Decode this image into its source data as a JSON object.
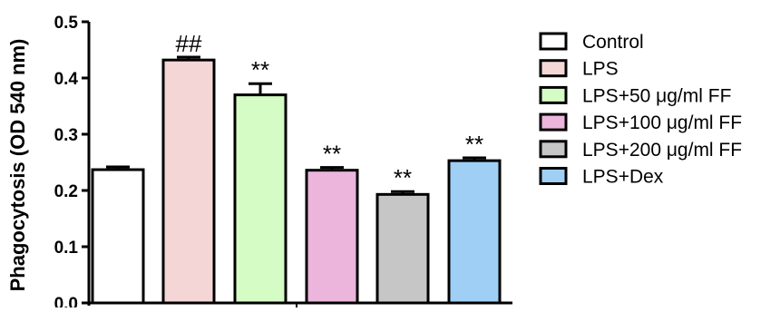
{
  "chart_data": {
    "type": "bar",
    "title": "",
    "xlabel": "",
    "ylabel": "Phagocytosis (OD 540 nm)",
    "ylim": [
      0,
      0.5
    ],
    "yticks": [
      "0.0",
      "0.1",
      "0.2",
      "0.3",
      "0.4",
      "0.5"
    ],
    "grid": false,
    "legend_position": "right",
    "categories": [
      "Control",
      "LPS",
      "LPS+50 μg/ml FF",
      "LPS+100 μg/ml FF",
      "LPS+200 μg/ml FF",
      "LPS+Dex"
    ],
    "values": [
      0.237,
      0.432,
      0.37,
      0.236,
      0.193,
      0.253
    ],
    "errors": [
      0.005,
      0.005,
      0.02,
      0.005,
      0.005,
      0.005
    ],
    "annotations": [
      "",
      "##",
      "**",
      "**",
      "**",
      "**"
    ],
    "colors": [
      "#ffffff",
      "#f5d6d6",
      "#d4fcc4",
      "#ebb5dc",
      "#c6c6c6",
      "#9fcff5"
    ]
  }
}
